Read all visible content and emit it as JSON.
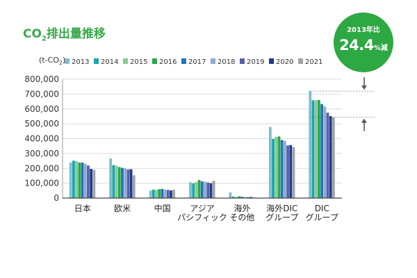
{
  "title": {
    "main": "CO",
    "subscript": "2",
    "rest": "排出量推移"
  },
  "badge": {
    "label": "2013年比",
    "value": "24.4",
    "percent": "%",
    "suffix": "減"
  },
  "chart_data": {
    "type": "bar",
    "unit_label": {
      "main": "(t-CO",
      "subscript": "2",
      "rest": ")"
    },
    "categories": [
      [
        "日本"
      ],
      [
        "欧米"
      ],
      [
        "中国"
      ],
      [
        "アジア",
        "パシフィック"
      ],
      [
        "海外",
        "その他"
      ],
      [
        "海外DIC",
        "グループ"
      ],
      [
        "DIC",
        "グループ"
      ]
    ],
    "series": [
      {
        "name": "2013",
        "color": "#7fbfca",
        "values": [
          240000,
          267000,
          50000,
          107000,
          38000,
          478000,
          720000
        ]
      },
      {
        "name": "2014",
        "color": "#1aa3b5",
        "values": [
          252000,
          222000,
          57000,
          100000,
          10000,
          398000,
          658000
        ]
      },
      {
        "name": "2015",
        "color": "#86cc8c",
        "values": [
          248000,
          218000,
          55000,
          108000,
          8000,
          411000,
          659000
        ]
      },
      {
        "name": "2016",
        "color": "#2ea54e",
        "values": [
          240000,
          209000,
          60000,
          122000,
          12000,
          415000,
          660000
        ]
      },
      {
        "name": "2017",
        "color": "#1e77b7",
        "values": [
          239000,
          203000,
          62000,
          113000,
          9000,
          391000,
          633000
        ]
      },
      {
        "name": "2018",
        "color": "#93a9d2",
        "values": [
          232000,
          199000,
          57000,
          110000,
          7000,
          385000,
          617000
        ]
      },
      {
        "name": "2019",
        "color": "#5660ac",
        "values": [
          219000,
          193000,
          55000,
          105000,
          6000,
          354000,
          575000
        ]
      },
      {
        "name": "2020",
        "color": "#1d3c8f",
        "values": [
          196000,
          194000,
          51000,
          100000,
          7000,
          357000,
          552000
        ]
      },
      {
        "name": "2021",
        "color": "#a3a3a3",
        "values": [
          190000,
          153000,
          57000,
          117000,
          5000,
          343000,
          544000
        ]
      }
    ],
    "ylim": [
      0,
      800000
    ],
    "yticks": [
      0,
      100000,
      200000,
      300000,
      400000,
      500000,
      600000,
      700000,
      800000
    ],
    "ytick_labels": [
      "0",
      "100,000",
      "200,000",
      "300,000",
      "400,000",
      "500,000",
      "600,000",
      "700,000",
      "800,000"
    ],
    "reference_lines": [
      720000,
      544000
    ],
    "grid": true,
    "legend_position": "top"
  }
}
